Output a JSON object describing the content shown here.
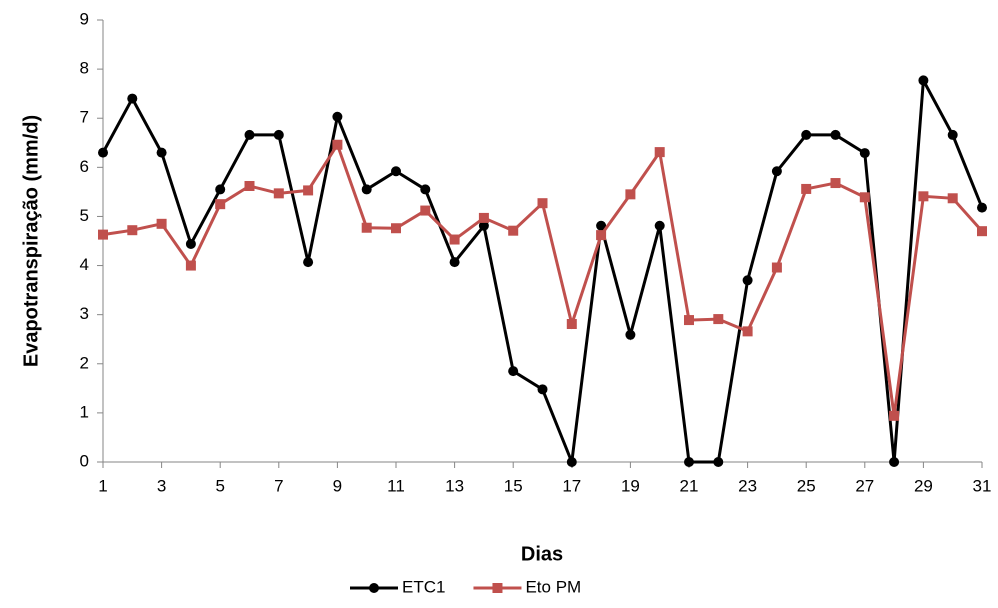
{
  "chart_data": {
    "type": "line",
    "x_label": "Dias",
    "y_label": "Evapotranspiração (mm/d)",
    "x": [
      1,
      2,
      3,
      4,
      5,
      6,
      7,
      8,
      9,
      10,
      11,
      12,
      13,
      14,
      15,
      16,
      17,
      18,
      19,
      20,
      21,
      22,
      23,
      24,
      25,
      26,
      27,
      28,
      29,
      30,
      31
    ],
    "series": [
      {
        "name": "ETC1",
        "color": "#000000",
        "marker": "circle",
        "values": [
          6.3,
          7.4,
          6.3,
          4.44,
          5.55,
          6.66,
          6.66,
          4.07,
          7.03,
          5.55,
          5.92,
          5.55,
          4.07,
          4.81,
          1.85,
          1.48,
          0,
          4.81,
          2.59,
          4.81,
          0,
          0,
          3.7,
          5.92,
          6.66,
          6.66,
          6.29,
          0,
          7.77,
          6.66,
          5.18
        ]
      },
      {
        "name": "Eto PM",
        "color": "#c0504d",
        "marker": "square",
        "values": [
          4.63,
          4.72,
          4.85,
          4.0,
          5.25,
          5.62,
          5.47,
          5.53,
          6.46,
          4.77,
          4.76,
          5.12,
          4.53,
          4.97,
          4.71,
          5.27,
          2.81,
          4.62,
          5.45,
          6.31,
          2.89,
          2.91,
          2.66,
          3.96,
          5.56,
          5.68,
          5.39,
          0.94,
          5.41,
          5.37,
          4.7
        ]
      }
    ],
    "xlim": [
      1,
      31
    ],
    "xticks": [
      1,
      3,
      5,
      7,
      9,
      11,
      13,
      15,
      17,
      19,
      21,
      23,
      25,
      27,
      29,
      31
    ],
    "ylim": [
      0,
      9
    ],
    "yticks": [
      0,
      1,
      2,
      3,
      4,
      5,
      6,
      7,
      8,
      9
    ],
    "grid": false,
    "legend": "bottom"
  }
}
